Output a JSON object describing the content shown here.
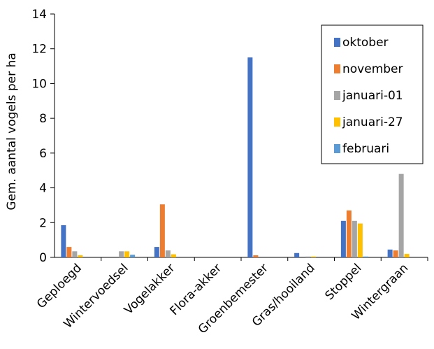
{
  "chart_data": {
    "type": "bar",
    "title": "",
    "xlabel": "",
    "ylabel": "Gem. aantal vogels per ha",
    "ylim": [
      0,
      14
    ],
    "yticks": [
      0,
      2,
      4,
      6,
      8,
      10,
      12,
      14
    ],
    "grid": false,
    "legend_position": "top-right",
    "categories": [
      "Geploegd",
      "Wintervoedsel",
      "Vogelakker",
      "Flora-akker",
      "Groenbemester",
      "Gras/hooiland",
      "Stoppel",
      "Wintergraan"
    ],
    "series": [
      {
        "name": "oktober",
        "color": "#4472C4",
        "values": [
          1.85,
          0.0,
          0.6,
          0.0,
          11.5,
          0.25,
          2.1,
          0.45
        ]
      },
      {
        "name": "november",
        "color": "#ED7D31",
        "values": [
          0.6,
          0.0,
          3.05,
          0.0,
          0.12,
          0.0,
          2.7,
          0.4
        ]
      },
      {
        "name": "januari-01",
        "color": "#A5A5A5",
        "values": [
          0.35,
          0.35,
          0.4,
          0.0,
          0.0,
          0.05,
          2.1,
          4.8
        ]
      },
      {
        "name": "januari-27",
        "color": "#FFC000",
        "values": [
          0.12,
          0.35,
          0.18,
          0.0,
          0.0,
          0.05,
          1.95,
          0.2
        ]
      },
      {
        "name": "februari",
        "color": "#5B9BD5",
        "values": [
          0.0,
          0.15,
          0.0,
          0.0,
          0.0,
          0.0,
          0.05,
          0.0
        ]
      }
    ]
  }
}
